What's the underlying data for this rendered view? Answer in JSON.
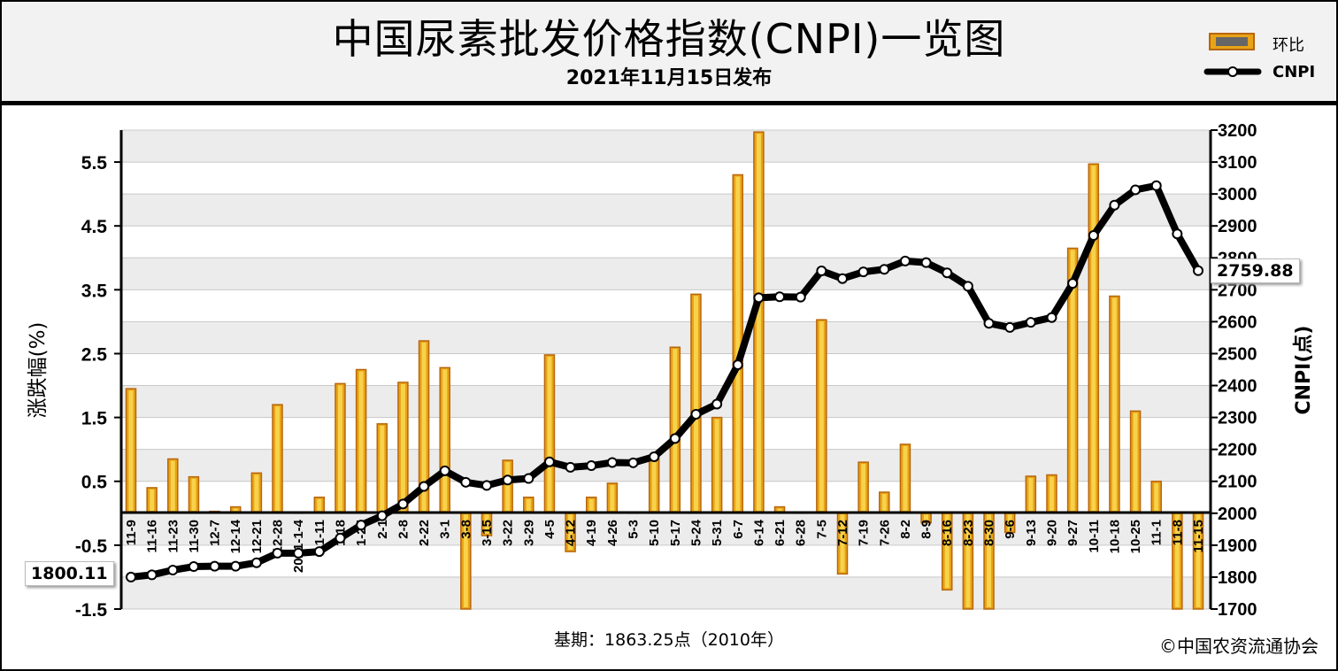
{
  "title": "中国尿素批发价格指数(CNPI)一览图",
  "subtitle": "2021年11月15日发布",
  "legend": {
    "bar_label": "环比",
    "line_label": "CNPI"
  },
  "footnote": "基期：1863.25点（2010年）",
  "copyright": "©中国农资流通协会",
  "colors": {
    "bar_fill": "#e8a317",
    "bar_edge": "#b8660b",
    "bar_core": "#f7d24a",
    "line": "#000000",
    "grid": "#c8c8c8",
    "band": "#ececec"
  },
  "chart_data": {
    "type": "bar",
    "categories": [
      "11-9",
      "11-16",
      "11-23",
      "11-30",
      "12-7",
      "12-14",
      "12-21",
      "12-28",
      "2021-1-4",
      "1-11",
      "1-18",
      "1-25",
      "2-1",
      "2-8",
      "2-22",
      "3-1",
      "3-8",
      "3-15",
      "3-22",
      "3-29",
      "4-5",
      "4-12",
      "4-19",
      "4-26",
      "5-3",
      "5-10",
      "5-17",
      "5-24",
      "5-31",
      "6-7",
      "6-14",
      "6-21",
      "6-28",
      "7-5",
      "7-12",
      "7-19",
      "7-26",
      "8-2",
      "8-9",
      "8-16",
      "8-23",
      "8-30",
      "9-6",
      "9-13",
      "9-20",
      "9-27",
      "10-11",
      "10-18",
      "10-25",
      "11-1",
      "11-8",
      "11-15"
    ],
    "xlabel": "",
    "y_left": {
      "label": "涨跌幅(%)",
      "ticks": [
        "5.5",
        "4.5",
        "3.5",
        "2.5",
        "1.5",
        "0.5",
        "-0.5",
        "-1.5"
      ],
      "range": [
        -1.5,
        6.0
      ]
    },
    "y_right": {
      "label": "CNPI(点)",
      "ticks": [
        "3200",
        "3100",
        "3000",
        "2900",
        "2800",
        "2700",
        "2600",
        "2500",
        "2400",
        "2300",
        "2200",
        "2100",
        "2000",
        "1900",
        "1800",
        "1700"
      ],
      "range": [
        1700,
        3200
      ]
    },
    "series": [
      {
        "name": "环比",
        "axis": "left",
        "values": [
          1.95,
          0.4,
          0.85,
          0.57,
          0.03,
          0.1,
          0.63,
          1.7,
          0.0,
          0.25,
          2.03,
          2.25,
          1.4,
          2.05,
          2.7,
          2.28,
          -1.5,
          -0.35,
          0.83,
          0.25,
          2.48,
          -0.6,
          0.25,
          0.47,
          0.0,
          0.87,
          2.6,
          3.43,
          1.5,
          5.3,
          5.97,
          0.1,
          0.0,
          3.03,
          -0.95,
          0.8,
          0.33,
          1.08,
          -0.15,
          -1.2,
          -1.5,
          -1.5,
          -0.3,
          0.58,
          0.6,
          4.15,
          5.47,
          3.4,
          1.6,
          0.5,
          -1.5,
          -1.5
        ]
      },
      {
        "name": "CNPI",
        "axis": "right",
        "values": [
          1800.11,
          1807,
          1822,
          1833,
          1834,
          1834,
          1845,
          1875,
          1875,
          1880,
          1922,
          1963,
          1992,
          2029,
          2084,
          2133,
          2097,
          2087,
          2104,
          2109,
          2161,
          2144,
          2149,
          2159,
          2158,
          2177,
          2234,
          2310,
          2342,
          2465,
          2675,
          2678,
          2677,
          2759,
          2735,
          2756,
          2764,
          2790,
          2785,
          2753,
          2711,
          2595,
          2582,
          2598,
          2613,
          2720,
          2870,
          2965,
          3013,
          3026,
          2875,
          2759.88
        ]
      }
    ],
    "callouts": {
      "first_value": "1800.11",
      "last_value": "2759.88"
    },
    "grid": true,
    "legend_position": "top-right"
  }
}
